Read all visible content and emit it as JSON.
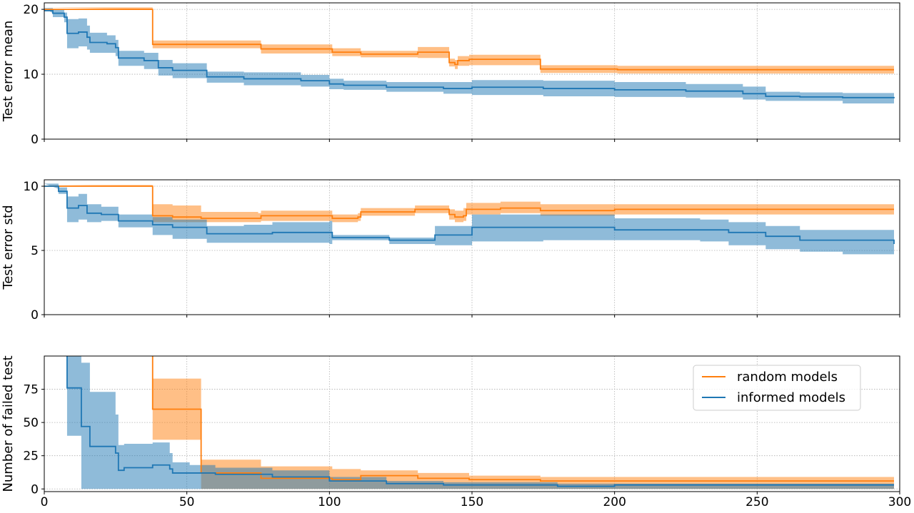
{
  "chart_data": [
    {
      "type": "line",
      "ylabel": "Test error mean",
      "xlim": [
        0,
        300
      ],
      "ylim": [
        0,
        21
      ],
      "yticks": [
        0,
        10,
        20
      ],
      "grid": true,
      "show_xticklabels": false,
      "series": [
        {
          "name": "random models",
          "color": "#ff7f0e",
          "x": [
            0,
            37,
            38,
            75,
            76,
            100,
            101,
            110,
            111,
            130,
            131,
            141,
            142,
            144,
            145,
            148,
            149,
            173,
            174,
            200,
            201,
            298
          ],
          "y": [
            20,
            20,
            14.6,
            14.6,
            13.9,
            13.9,
            13.4,
            13.4,
            13.1,
            13.1,
            13.4,
            13.4,
            11.8,
            11.5,
            12.1,
            12.1,
            12.3,
            12.3,
            10.8,
            10.8,
            10.7,
            10.7
          ],
          "lower": [
            20,
            20,
            14.0,
            14.0,
            13.2,
            13.2,
            12.8,
            12.8,
            12.6,
            12.6,
            12.5,
            12.5,
            11.2,
            10.8,
            11.3,
            11.3,
            11.4,
            11.4,
            10.2,
            10.2,
            10.1,
            10.1
          ],
          "upper": [
            20.3,
            20.3,
            15.2,
            15.2,
            14.6,
            14.6,
            14.0,
            14.0,
            13.6,
            13.6,
            14.2,
            14.2,
            12.4,
            12.2,
            12.8,
            12.8,
            13.0,
            13.0,
            11.4,
            11.4,
            11.3,
            11.3
          ]
        },
        {
          "name": "informed models",
          "color": "#1f77b4",
          "x": [
            0,
            3,
            7,
            8,
            12,
            15,
            16,
            22,
            25,
            26,
            35,
            40,
            45,
            57,
            70,
            90,
            100,
            105,
            120,
            140,
            150,
            175,
            200,
            225,
            245,
            253,
            265,
            280,
            298
          ],
          "y": [
            19.8,
            19.4,
            18.8,
            16.3,
            16.5,
            15.7,
            14.9,
            14.7,
            14.1,
            12.5,
            12.1,
            11.0,
            10.6,
            9.6,
            9.3,
            9.0,
            8.5,
            8.3,
            8.0,
            7.8,
            8.0,
            7.8,
            7.6,
            7.4,
            7.0,
            6.6,
            6.5,
            6.4,
            6.3
          ],
          "lower": [
            19.4,
            18.8,
            18.0,
            14.0,
            14.3,
            13.8,
            13.3,
            13.3,
            12.8,
            11.3,
            10.8,
            9.8,
            9.4,
            8.7,
            8.3,
            8.1,
            7.7,
            7.6,
            7.3,
            7.0,
            6.8,
            6.6,
            6.5,
            6.4,
            6.1,
            5.9,
            5.9,
            5.5,
            5.5
          ],
          "upper": [
            20.2,
            20.0,
            19.5,
            18.5,
            18.6,
            17.5,
            16.4,
            16.0,
            15.3,
            13.6,
            13.3,
            12.2,
            11.7,
            10.4,
            10.3,
            9.9,
            9.3,
            9.0,
            8.8,
            8.8,
            9.1,
            9.0,
            8.8,
            8.5,
            8.1,
            7.3,
            7.2,
            7.1,
            7.0
          ]
        }
      ]
    },
    {
      "type": "line",
      "ylabel": "Test error std",
      "xlim": [
        0,
        300
      ],
      "ylim": [
        0,
        10.5
      ],
      "yticks": [
        0,
        5,
        10
      ],
      "grid": true,
      "show_xticklabels": false,
      "series": [
        {
          "name": "random models",
          "color": "#ff7f0e",
          "x": [
            0,
            37,
            38,
            45,
            55,
            75,
            76,
            100,
            101,
            110,
            111,
            125,
            130,
            141,
            142,
            144,
            147,
            148,
            160,
            173,
            174,
            200,
            298
          ],
          "y": [
            10,
            10,
            7.7,
            7.6,
            7.5,
            7.5,
            7.7,
            7.7,
            7.5,
            7.6,
            8.0,
            8.0,
            8.2,
            8.2,
            7.8,
            7.6,
            7.7,
            8.2,
            8.3,
            8.3,
            8.1,
            8.2,
            8.2
          ],
          "lower": [
            10,
            10,
            7.2,
            7.2,
            7.2,
            7.2,
            7.3,
            7.3,
            7.2,
            7.3,
            7.7,
            7.7,
            7.9,
            7.9,
            7.4,
            7.2,
            7.3,
            7.8,
            7.9,
            7.9,
            7.7,
            7.8,
            7.8
          ],
          "upper": [
            10.1,
            10.1,
            8.6,
            8.5,
            8.0,
            7.9,
            8.1,
            8.1,
            7.8,
            7.9,
            8.3,
            8.3,
            8.5,
            8.5,
            8.2,
            8.1,
            8.3,
            8.7,
            8.8,
            8.8,
            8.6,
            8.6,
            8.6
          ]
        },
        {
          "name": "informed models",
          "color": "#1f77b4",
          "x": [
            0,
            5,
            8,
            12,
            15,
            20,
            26,
            30,
            37,
            38,
            45,
            57,
            70,
            80,
            100,
            101,
            110,
            121,
            131,
            137,
            150,
            175,
            200,
            230,
            240,
            253,
            265,
            280,
            298
          ],
          "y": [
            10.0,
            9.6,
            8.3,
            8.5,
            7.9,
            7.8,
            7.3,
            7.3,
            7.3,
            7.0,
            6.8,
            6.3,
            6.3,
            6.4,
            6.4,
            6.0,
            6.0,
            5.8,
            5.8,
            6.2,
            6.8,
            6.8,
            6.6,
            6.6,
            6.4,
            6.1,
            5.8,
            5.8,
            5.5
          ],
          "lower": [
            9.8,
            9.4,
            7.2,
            7.4,
            7.2,
            7.3,
            6.8,
            6.8,
            6.8,
            6.2,
            5.9,
            5.6,
            5.6,
            5.6,
            5.5,
            5.8,
            5.8,
            5.5,
            5.5,
            5.4,
            5.7,
            5.8,
            5.8,
            5.7,
            5.4,
            5.1,
            4.9,
            4.7,
            4.6
          ],
          "upper": [
            10.2,
            9.9,
            9.2,
            9.4,
            8.6,
            8.4,
            7.8,
            7.8,
            7.8,
            7.6,
            7.4,
            6.9,
            7.0,
            7.2,
            7.3,
            6.2,
            6.2,
            6.0,
            6.0,
            6.9,
            7.8,
            7.8,
            7.5,
            7.4,
            7.2,
            6.9,
            6.6,
            6.6,
            6.5
          ]
        }
      ]
    },
    {
      "type": "line",
      "ylabel": "Number of failed test",
      "xlabel": "",
      "xlim": [
        0,
        300
      ],
      "ylim": [
        -2,
        100
      ],
      "yticks": [
        0,
        25,
        50,
        75
      ],
      "xticks": [
        0,
        50,
        100,
        150,
        200,
        250,
        300
      ],
      "grid": true,
      "show_xticklabels": true,
      "legend": "top-right",
      "series": [
        {
          "name": "random models",
          "color": "#ff7f0e",
          "x": [
            37,
            38,
            54,
            55,
            75,
            76,
            100,
            101,
            110,
            111,
            130,
            131,
            148,
            149,
            173,
            174,
            200,
            298
          ],
          "y": [
            120,
            60,
            60,
            12,
            12,
            8,
            8,
            7,
            7,
            10,
            10,
            8,
            8,
            7,
            7,
            6,
            6,
            6
          ],
          "lower": [
            120,
            37,
            37,
            0,
            0,
            0,
            0,
            0,
            0,
            0,
            0,
            0,
            0,
            0,
            0,
            0,
            0,
            0
          ],
          "upper": [
            120,
            83,
            83,
            22,
            22,
            17,
            17,
            15,
            15,
            14,
            14,
            12,
            12,
            10,
            10,
            9,
            9,
            9
          ]
        },
        {
          "name": "informed models",
          "color": "#1f77b4",
          "x": [
            7,
            8,
            12,
            13,
            16,
            25,
            26,
            27,
            28,
            38,
            44,
            45,
            50,
            51,
            60,
            80,
            100,
            120,
            140,
            180,
            200,
            298
          ],
          "y": [
            110,
            76,
            76,
            47,
            32,
            27,
            14,
            14,
            16,
            18,
            15,
            12,
            12,
            12,
            11,
            9,
            6,
            4,
            3,
            2,
            3,
            3
          ],
          "lower": [
            110,
            40,
            40,
            0,
            0,
            0,
            0,
            0,
            0,
            0,
            0,
            0,
            0,
            0,
            0,
            0,
            0,
            0,
            0,
            0,
            0,
            0
          ],
          "upper": [
            110,
            115,
            115,
            95,
            73,
            56,
            33,
            33,
            34,
            35,
            27,
            20,
            20,
            18,
            16,
            14,
            9,
            6,
            5,
            4,
            4,
            4
          ]
        }
      ]
    }
  ]
}
